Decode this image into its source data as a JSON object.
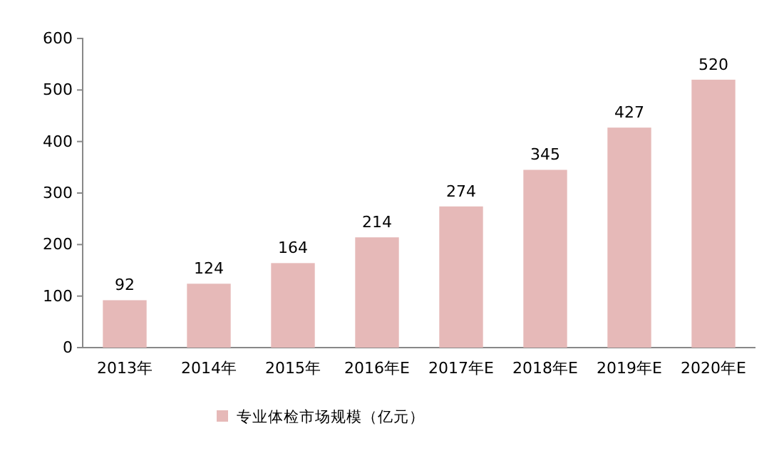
{
  "chart_data": {
    "type": "bar",
    "categories": [
      "2013年",
      "2014年",
      "2015年",
      "2016年E",
      "2017年E",
      "2018年E",
      "2019年E",
      "2020年E"
    ],
    "series": [
      {
        "name": "专业体检市场规模（亿元）",
        "color": "#e6b9b8",
        "values": [
          92,
          124,
          164,
          214,
          274,
          345,
          427,
          520
        ]
      }
    ],
    "ylim": [
      0,
      600
    ],
    "yticks": [
      0,
      100,
      200,
      300,
      400,
      500,
      600
    ],
    "data_labels": true,
    "legend": "bottom",
    "grid": false
  }
}
